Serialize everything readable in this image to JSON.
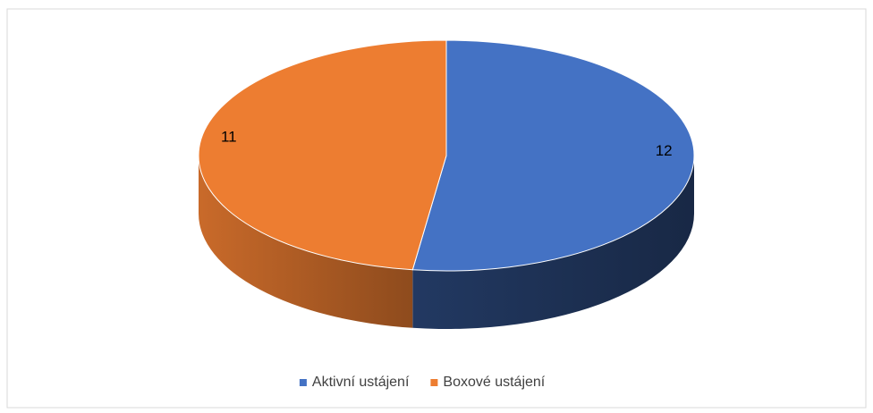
{
  "chart_data": {
    "type": "pie",
    "categories": [
      "Aktivní ustájení",
      "Boxové ustájení"
    ],
    "values": [
      12,
      11
    ],
    "colors": [
      "#4472c4",
      "#ed7d31"
    ],
    "legend": "bottom"
  }
}
